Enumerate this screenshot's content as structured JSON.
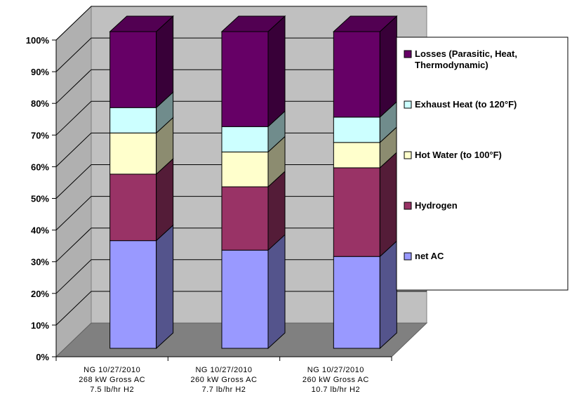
{
  "chart_data": {
    "type": "bar",
    "stacked": true,
    "three_d": true,
    "categories": [
      [
        "NG 10/27/2010",
        "268 kW Gross AC",
        "7.5 lb/hr H2"
      ],
      [
        "NG 10/27/2010",
        "260 kW Gross AC",
        "7.7 lb/hr H2"
      ],
      [
        "NG 10/27/2010",
        "260 kW Gross AC",
        "10.7 lb/hr H2"
      ]
    ],
    "y_ticks": [
      "0%",
      "10%",
      "20%",
      "30%",
      "40%",
      "50%",
      "60%",
      "70%",
      "80%",
      "90%",
      "100%"
    ],
    "ylim": [
      0,
      100
    ],
    "legend_position": "right",
    "series": [
      {
        "name": "net AC",
        "color": "#9999ff",
        "values": [
          34,
          31,
          29
        ]
      },
      {
        "name": "Hydrogen",
        "color": "#993366",
        "values": [
          21,
          20,
          28
        ]
      },
      {
        "name": "Hot Water (to 100°F)",
        "color": "#ffffcc",
        "values": [
          13,
          11,
          8
        ]
      },
      {
        "name": "Exhaust Heat (to 120°F)",
        "color": "#ccffff",
        "values": [
          8,
          8,
          8
        ]
      },
      {
        "name": "Losses (Parasitic, Heat, Thermodynamic)",
        "color": "#660066",
        "values": [
          24,
          30,
          27
        ]
      }
    ],
    "legend_lines": [
      [
        "Losses (Parasitic, Heat,",
        "Thermodynamic)"
      ],
      [
        "Exhaust Heat (to 120°F)"
      ],
      [
        "Hot Water (to 100°F)"
      ],
      [
        "Hydrogen"
      ],
      [
        "net AC"
      ]
    ]
  }
}
